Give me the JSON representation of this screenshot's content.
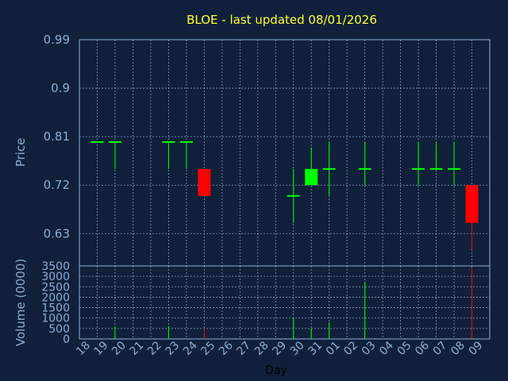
{
  "chart_data": {
    "type": "candlestick",
    "title": "BLOE - last updated 08/01/2026",
    "xlabel": "Day",
    "price_ylabel": "Price",
    "volume_ylabel": "Volume (0000)",
    "price_ylim": [
      0.57,
      0.99
    ],
    "price_ticks": [
      "0.99",
      "0.9",
      "0.81",
      "0.72",
      "0.63"
    ],
    "volume_ylim": [
      0,
      3500
    ],
    "volume_ticks": [
      "3500",
      "3000",
      "2500",
      "2000",
      "1500",
      "1000",
      "500",
      "0"
    ],
    "x_ticks": [
      "18",
      "19",
      "20",
      "21",
      "22",
      "23",
      "24",
      "25",
      "26",
      "27",
      "28",
      "29",
      "30",
      "31",
      "01",
      "02",
      "03",
      "04",
      "05",
      "06",
      "07",
      "08",
      "09"
    ],
    "up_color": "#00ff00",
    "down_color": "#ff0000",
    "candles": [
      {
        "day": "18",
        "open": 0.8,
        "high": 0.8,
        "low": 0.8,
        "close": 0.8,
        "volume": 0
      },
      {
        "day": "19",
        "open": 0.8,
        "high": 0.8,
        "low": 0.75,
        "close": 0.8,
        "volume": 600
      },
      {
        "day": "22",
        "open": 0.8,
        "high": 0.8,
        "low": 0.75,
        "close": 0.8,
        "volume": 600
      },
      {
        "day": "23",
        "open": 0.8,
        "high": 0.8,
        "low": 0.75,
        "close": 0.8,
        "volume": 0
      },
      {
        "day": "24",
        "open": 0.75,
        "high": 0.75,
        "low": 0.7,
        "close": 0.7,
        "volume": 500
      },
      {
        "day": "29",
        "open": 0.7,
        "high": 0.75,
        "low": 0.65,
        "close": 0.7,
        "volume": 1000
      },
      {
        "day": "30",
        "open": 0.72,
        "high": 0.79,
        "low": 0.72,
        "close": 0.75,
        "volume": 500
      },
      {
        "day": "31",
        "open": 0.75,
        "high": 0.8,
        "low": 0.7,
        "close": 0.75,
        "volume": 800
      },
      {
        "day": "02",
        "open": 0.75,
        "high": 0.8,
        "low": 0.72,
        "close": 0.75,
        "volume": 2750
      },
      {
        "day": "05",
        "open": 0.75,
        "high": 0.8,
        "low": 0.72,
        "close": 0.75,
        "volume": 0
      },
      {
        "day": "06",
        "open": 0.75,
        "high": 0.8,
        "low": 0.75,
        "close": 0.75,
        "volume": 0
      },
      {
        "day": "07",
        "open": 0.75,
        "high": 0.8,
        "low": 0.72,
        "close": 0.75,
        "volume": 0
      },
      {
        "day": "08",
        "open": 0.72,
        "high": 0.72,
        "low": 0.6,
        "close": 0.65,
        "volume": 3400
      }
    ]
  }
}
